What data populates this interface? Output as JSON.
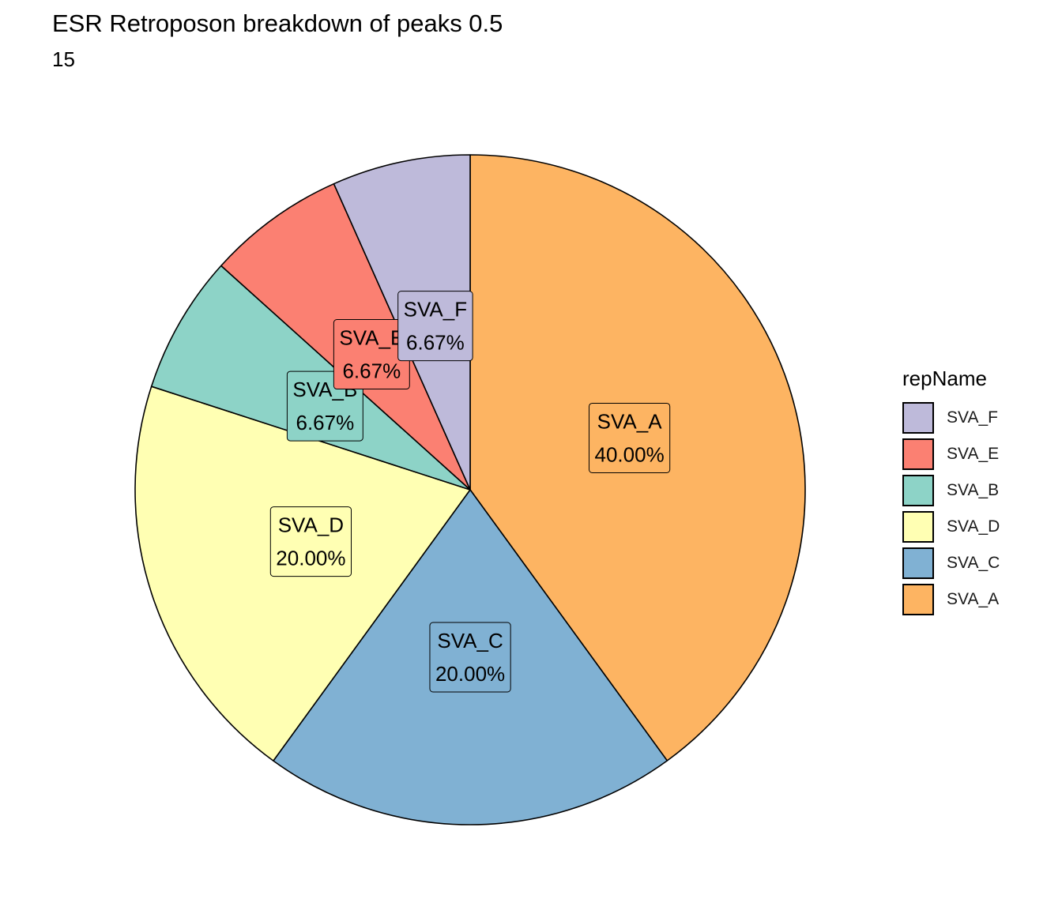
{
  "chart_data": {
    "type": "pie",
    "title": "ESR Retroposon breakdown of peaks 0.5",
    "subtitle": "15",
    "legend_title": "repName",
    "legend_position": "right",
    "slices": [
      {
        "name": "SVA_A",
        "value": 40.0,
        "label": "40.00%",
        "color": "#FDB462"
      },
      {
        "name": "SVA_C",
        "value": 20.0,
        "label": "20.00%",
        "color": "#80B1D3"
      },
      {
        "name": "SVA_D",
        "value": 20.0,
        "label": "20.00%",
        "color": "#FFFFB3"
      },
      {
        "name": "SVA_B",
        "value": 6.67,
        "label": "6.67%",
        "color": "#8DD3C7"
      },
      {
        "name": "SVA_E",
        "value": 6.67,
        "label": "6.67%",
        "color": "#FB8072"
      },
      {
        "name": "SVA_F",
        "value": 6.67,
        "label": "6.67%",
        "color": "#BEBADA"
      }
    ],
    "legend_order": [
      "SVA_F",
      "SVA_E",
      "SVA_B",
      "SVA_D",
      "SVA_C",
      "SVA_A"
    ]
  }
}
